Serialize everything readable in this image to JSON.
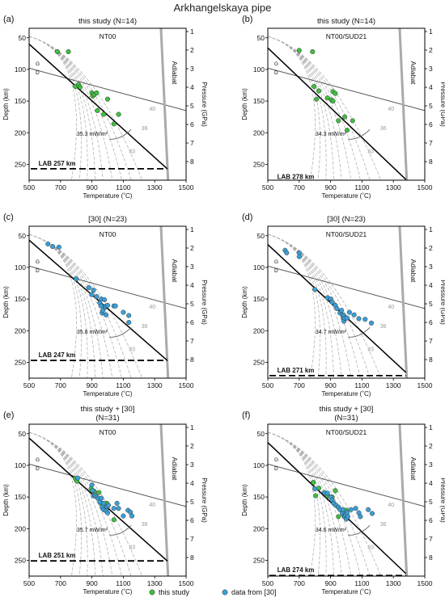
{
  "title": "Arkhangelskaya pipe",
  "axes": {
    "xlabel": "Temperature (˚C)",
    "ylabel": "Depth (km)",
    "ylabel2": "Pressure (GPa)",
    "xlim": [
      500,
      1500
    ],
    "ylim": [
      275,
      35
    ],
    "xticks": [
      500,
      700,
      900,
      1100,
      1300,
      1500
    ],
    "yticks": [
      50,
      100,
      150,
      200,
      250
    ],
    "pticks": [
      "1",
      "2",
      "3",
      "4",
      "5",
      "6",
      "7",
      "8"
    ]
  },
  "reference_lines": {
    "adiabat_label": "Adiabat",
    "g_label": "G",
    "d_label": "D",
    "geotherm_labels": [
      "33",
      "36",
      "40"
    ]
  },
  "colors": {
    "this_study": "#3fbf3f",
    "data30": "#3a9fd6",
    "geotherm": "#000000",
    "reference": "#aaaaaa",
    "adiabat": "#aaaaaa",
    "gd_line": "#555555"
  },
  "legend": {
    "items": [
      {
        "label": "this study",
        "color": "#3fbf3f"
      },
      {
        "label": "data from [30]",
        "color": "#3a9fd6"
      }
    ]
  },
  "chart_data": [
    {
      "type": "scatter",
      "panel": "(a)",
      "title": "this study (N=14)",
      "model": "NT00",
      "heat_flow_label": "35.3 mW/m²",
      "lab_label": "LAB 257 km",
      "lab_depth": 257,
      "fit": [
        [
          500,
          60
        ],
        [
          1380,
          257
        ]
      ],
      "series": [
        {
          "name": "this study",
          "color": "#3fbf3f",
          "points": [
            [
              680,
              72
            ],
            [
              750,
              72
            ],
            [
              795,
              127
            ],
            [
              815,
              124
            ],
            [
              825,
              128
            ],
            [
              900,
              137
            ],
            [
              905,
              142
            ],
            [
              915,
              140
            ],
            [
              930,
              137
            ],
            [
              935,
              165
            ],
            [
              975,
              171
            ],
            [
              1000,
              147
            ],
            [
              1040,
              186
            ],
            [
              1070,
              171
            ]
          ]
        }
      ]
    },
    {
      "type": "scatter",
      "panel": "(b)",
      "title": "this study (N=14)",
      "model": "NT00/SUD21",
      "heat_flow_label": "34.3 mW/m²",
      "lab_label": "LAB 278 km",
      "lab_depth": 278,
      "fit": [
        [
          500,
          66
        ],
        [
          1380,
          274
        ]
      ],
      "series": [
        {
          "name": "this study",
          "color": "#3fbf3f",
          "points": [
            [
              700,
              70
            ],
            [
              785,
              72
            ],
            [
              795,
              127
            ],
            [
              810,
              147
            ],
            [
              825,
              134
            ],
            [
              880,
              145
            ],
            [
              905,
              148
            ],
            [
              915,
              135
            ],
            [
              915,
              150
            ],
            [
              930,
              138
            ],
            [
              950,
              181
            ],
            [
              990,
              175
            ],
            [
              1005,
              196
            ],
            [
              1040,
              181
            ]
          ]
        }
      ]
    },
    {
      "type": "scatter",
      "panel": "(c)",
      "title": "[30] (N=23)",
      "model": "NT00",
      "heat_flow_label": "35.8 mW/m²",
      "lab_label": "LAB 247 km",
      "lab_depth": 247,
      "fit": [
        [
          500,
          57
        ],
        [
          1380,
          247
        ]
      ],
      "series": [
        {
          "name": "data from [30]",
          "color": "#3a9fd6",
          "points": [
            [
              620,
              63
            ],
            [
              650,
              67
            ],
            [
              690,
              68
            ],
            [
              800,
              118
            ],
            [
              880,
              132
            ],
            [
              900,
              143
            ],
            [
              910,
              136
            ],
            [
              930,
              146
            ],
            [
              950,
              156
            ],
            [
              960,
              161
            ],
            [
              960,
              150
            ],
            [
              965,
              172
            ],
            [
              970,
              168
            ],
            [
              980,
              151
            ],
            [
              985,
              163
            ],
            [
              990,
              161
            ],
            [
              990,
              175
            ],
            [
              1000,
              160
            ],
            [
              1040,
              161
            ],
            [
              1050,
              161
            ],
            [
              1100,
              171
            ],
            [
              1135,
              176
            ],
            [
              1135,
              187
            ]
          ]
        }
      ]
    },
    {
      "type": "scatter",
      "panel": "(d)",
      "title": "[30] (N=23)",
      "model": "NT00/SUD21",
      "heat_flow_label": "34.7 mW/m²",
      "lab_label": "LAB 271 km",
      "lab_depth": 271,
      "fit": [
        [
          500,
          64
        ],
        [
          1380,
          266
        ]
      ],
      "series": [
        {
          "name": "data from [30]",
          "color": "#3a9fd6",
          "points": [
            [
              610,
              73
            ],
            [
              620,
              77
            ],
            [
              700,
              77
            ],
            [
              700,
              83
            ],
            [
              800,
              135
            ],
            [
              880,
              148
            ],
            [
              900,
              150
            ],
            [
              910,
              155
            ],
            [
              930,
              160
            ],
            [
              940,
              165
            ],
            [
              960,
              172
            ],
            [
              970,
              168
            ],
            [
              975,
              175
            ],
            [
              980,
              180
            ],
            [
              985,
              185
            ],
            [
              985,
              176
            ],
            [
              990,
              180
            ],
            [
              1005,
              180
            ],
            [
              1020,
              171
            ],
            [
              1050,
              175
            ],
            [
              1080,
              181
            ],
            [
              1120,
              182
            ],
            [
              1160,
              188
            ]
          ]
        }
      ]
    },
    {
      "type": "scatter",
      "panel": "(e)",
      "title": "this study + [30]",
      "title2": "(N=31)",
      "model": "NT00",
      "heat_flow_label": "35.7 mW/m²",
      "lab_label": "LAB 251 km",
      "lab_depth": 251,
      "fit": [
        [
          500,
          57
        ],
        [
          1380,
          251
        ]
      ],
      "series": [
        {
          "name": "this study",
          "color": "#3fbf3f",
          "points": [
            [
              795,
              121
            ],
            [
              805,
              125
            ],
            [
              895,
              137
            ],
            [
              915,
              141
            ],
            [
              945,
              143
            ],
            [
              960,
              160
            ],
            [
              995,
              160
            ],
            [
              1040,
              186
            ]
          ]
        },
        {
          "name": "data from [30]",
          "color": "#3a9fd6",
          "points": [
            [
              810,
              120
            ],
            [
              900,
              131
            ],
            [
              905,
              140
            ],
            [
              910,
              148
            ],
            [
              920,
              148
            ],
            [
              930,
              150
            ],
            [
              940,
              152
            ],
            [
              950,
              158
            ],
            [
              960,
              152
            ],
            [
              965,
              166
            ],
            [
              975,
              160
            ],
            [
              975,
              170
            ],
            [
              990,
              172
            ],
            [
              995,
              165
            ],
            [
              1000,
              175
            ],
            [
              1005,
              163
            ],
            [
              1040,
              168
            ],
            [
              1060,
              160
            ],
            [
              1070,
              168
            ],
            [
              1100,
              180
            ],
            [
              1130,
              171
            ],
            [
              1145,
              174
            ],
            [
              1155,
              180
            ]
          ]
        }
      ]
    },
    {
      "type": "scatter",
      "panel": "(f)",
      "title": "this study + [30]",
      "title2": "(N=31)",
      "model": "NT00/SUD21",
      "heat_flow_label": "34.6 mW/m²",
      "lab_label": "LAB 274 km",
      "lab_depth": 274,
      "fit": [
        [
          500,
          64
        ],
        [
          1380,
          271
        ]
      ],
      "series": [
        {
          "name": "this study",
          "color": "#3fbf3f",
          "points": [
            [
              790,
              127
            ],
            [
              805,
              148
            ],
            [
              825,
              136
            ],
            [
              880,
              148
            ],
            [
              910,
              150
            ],
            [
              930,
              140
            ],
            [
              950,
              181
            ],
            [
              1000,
              171
            ]
          ]
        },
        {
          "name": "data from [30]",
          "color": "#3a9fd6",
          "points": [
            [
              800,
              137
            ],
            [
              860,
              143
            ],
            [
              880,
              144
            ],
            [
              900,
              150
            ],
            [
              910,
              155
            ],
            [
              920,
              160
            ],
            [
              935,
              163
            ],
            [
              950,
              166
            ],
            [
              960,
              170
            ],
            [
              975,
              176
            ],
            [
              980,
              170
            ],
            [
              985,
              180
            ],
            [
              990,
              181
            ],
            [
              995,
              178
            ],
            [
              1000,
              185
            ],
            [
              1005,
              175
            ],
            [
              1010,
              181
            ],
            [
              1030,
              170
            ],
            [
              1060,
              168
            ],
            [
              1080,
              175
            ],
            [
              1090,
              181
            ],
            [
              1140,
              170
            ],
            [
              1165,
              176
            ]
          ]
        }
      ]
    }
  ]
}
